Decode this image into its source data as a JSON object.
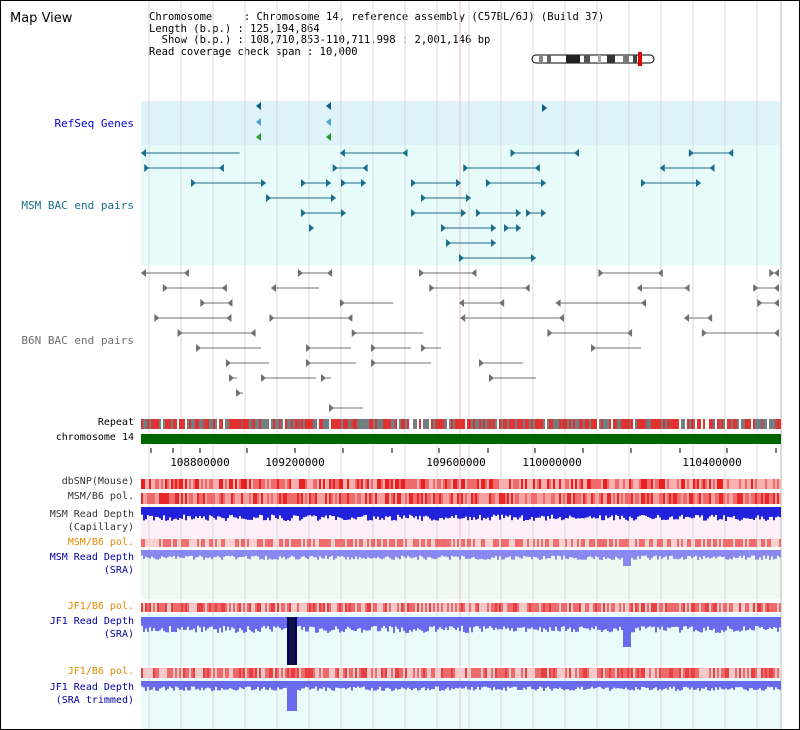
{
  "title": "Map View",
  "info": {
    "line1": "Chromosome     : Chromosome 14, reference assembly (C57BL/6J) (Build 37)",
    "line2": "Length (b.p.) : 125,194,864",
    "line3": "  Show (b.p.) : 108,710,853-110,711,998 : 2,001,146 bp",
    "line4": "Read coverage check span : 10,000"
  },
  "tracks": {
    "refseq": "RefSeq Genes",
    "msm_bac": "MSM BAC end pairs",
    "b6n_bac": "B6N BAC end pairs",
    "repeat": "Repeat",
    "chromosome": "chromosome 14",
    "dbsnp": "dbSNP(Mouse)",
    "msm_b6_pol": "MSM/B6 pol.",
    "msm_depth_cap": "MSM Read Depth\n(Capillary)",
    "msm_b6_pol2": "MSM/B6 pol.",
    "msm_depth_sra": "MSM Read Depth\n(SRA)",
    "jf1_b6_pol": "JF1/B6 pol.",
    "jf1_depth_sra": "JF1 Read Depth\n(SRA)",
    "jf1_b6_pol2": "JF1/B6 pol.",
    "jf1_depth_trim": "JF1 Read Depth\n(SRA trimmed)"
  },
  "axis": {
    "ticks": [
      "108800000",
      "109200000",
      "109600000",
      "110000000",
      "110400000"
    ]
  },
  "colors": {
    "refseq_bg": "#dff3fb",
    "msm_bac_bg": "#e8fbfb",
    "teal": "#1a6e8a",
    "gray": "#707070",
    "green": "#006600",
    "orange": "#e08a00",
    "navy": "#0000a0",
    "blue_depth": "#2222dd",
    "light_blue_depth": "#7777ee"
  }
}
